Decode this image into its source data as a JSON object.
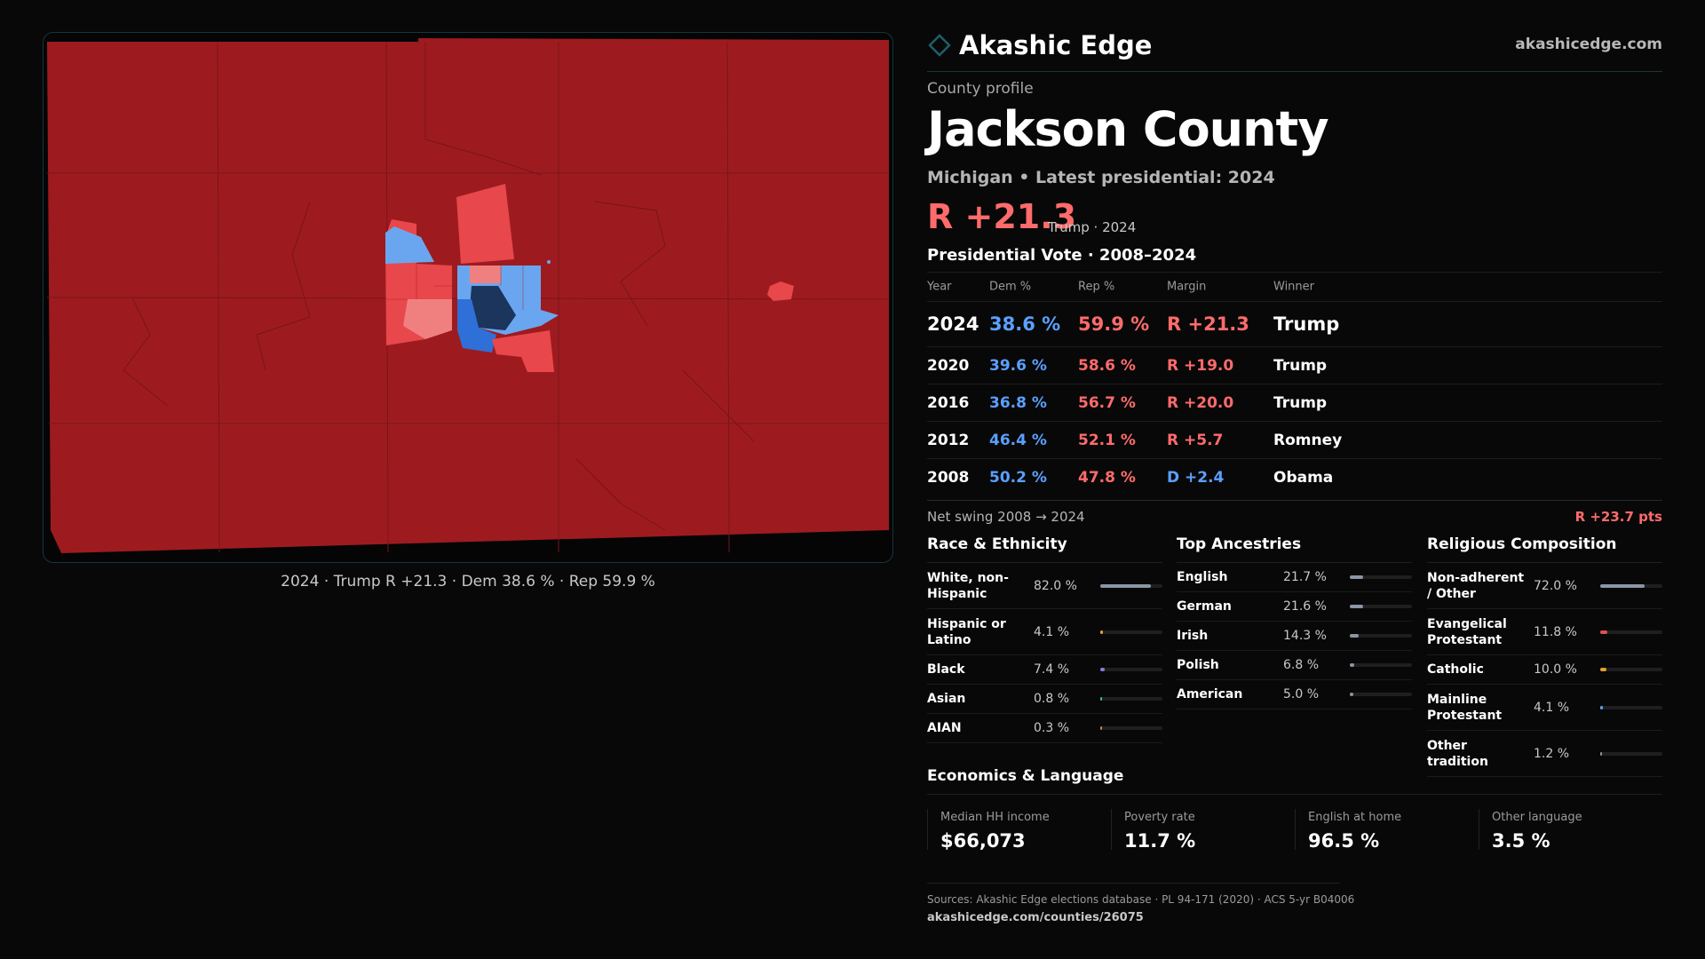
{
  "brand": {
    "name": "Akashic Edge",
    "site": "akashicedge.com",
    "accent": "#1e5f6b"
  },
  "map": {
    "caption": "2024 · Trump R +21.3 · Dem 38.6 % · Rep 59.9 %",
    "colors": {
      "background_rep": "#9d1b1f",
      "rep_medium": "#e8474b",
      "rep_light": "#f08080",
      "dem_light": "#6aa6f0",
      "dem_medium": "#2f6fd8",
      "dem_dark": "#1b355c"
    }
  },
  "profile": {
    "kicker": "County profile",
    "county": "Jackson County",
    "subtitle": "Michigan • Latest presidential: 2024",
    "margin": "R +21.3",
    "margin_note": "Trump · 2024"
  },
  "vote": {
    "title": "Presidential Vote · 2008–2024",
    "headers": {
      "year": "Year",
      "dem": "Dem %",
      "rep": "Rep %",
      "margin": "Margin",
      "winner": "Winner"
    },
    "rows": [
      {
        "year": "2024",
        "dem": "38.6 %",
        "rep": "59.9 %",
        "margin": "R +21.3",
        "party": "R",
        "winner": "Trump"
      },
      {
        "year": "2020",
        "dem": "39.6 %",
        "rep": "58.6 %",
        "margin": "R +19.0",
        "party": "R",
        "winner": "Trump"
      },
      {
        "year": "2016",
        "dem": "36.8 %",
        "rep": "56.7 %",
        "margin": "R +20.0",
        "party": "R",
        "winner": "Trump"
      },
      {
        "year": "2012",
        "dem": "46.4 %",
        "rep": "52.1 %",
        "margin": "R +5.7",
        "party": "R",
        "winner": "Romney"
      },
      {
        "year": "2008",
        "dem": "50.2 %",
        "rep": "47.8 %",
        "margin": "D +2.4",
        "party": "D",
        "winner": "Obama"
      }
    ],
    "swing_label": "Net swing 2008 → 2024",
    "swing_value": "R +23.7 pts"
  },
  "race": {
    "title": "Race & Ethnicity",
    "rows": [
      {
        "label": "White, non-Hispanic",
        "value": "82.0 %",
        "pct": 82.0,
        "color": "#8b95a6"
      },
      {
        "label": "Hispanic or Latino",
        "value": "4.1 %",
        "pct": 4.1,
        "color": "#e0a030"
      },
      {
        "label": "Black",
        "value": "7.4 %",
        "pct": 7.4,
        "color": "#8a7ad8"
      },
      {
        "label": "Asian",
        "value": "0.8 %",
        "pct": 0.8,
        "color": "#3fb6a8"
      },
      {
        "label": "AIAN",
        "value": "0.3 %",
        "pct": 0.3,
        "color": "#d08040"
      }
    ]
  },
  "ancestry": {
    "title": "Top Ancestries",
    "rows": [
      {
        "label": "English",
        "value": "21.7 %",
        "pct": 21.7,
        "color": "#8b95a6"
      },
      {
        "label": "German",
        "value": "21.6 %",
        "pct": 21.6,
        "color": "#8b95a6"
      },
      {
        "label": "Irish",
        "value": "14.3 %",
        "pct": 14.3,
        "color": "#8b95a6"
      },
      {
        "label": "Polish",
        "value": "6.8 %",
        "pct": 6.8,
        "color": "#8b95a6"
      },
      {
        "label": "American",
        "value": "5.0 %",
        "pct": 5.0,
        "color": "#8b95a6"
      }
    ]
  },
  "religion": {
    "title": "Religious Composition",
    "rows": [
      {
        "label": "Non-adherent / Other",
        "value": "72.0 %",
        "pct": 72.0,
        "color": "#8b95a6"
      },
      {
        "label": "Evangelical Protestant",
        "value": "11.8 %",
        "pct": 11.8,
        "color": "#e05050"
      },
      {
        "label": "Catholic",
        "value": "10.0 %",
        "pct": 10.0,
        "color": "#e0a030"
      },
      {
        "label": "Mainline Protestant",
        "value": "4.1 %",
        "pct": 4.1,
        "color": "#5aa0ff"
      },
      {
        "label": "Other tradition",
        "value": "1.2 %",
        "pct": 1.2,
        "color": "#8b95a6"
      }
    ]
  },
  "economics": {
    "title": "Economics & Language",
    "cells": [
      {
        "label": "Median HH income",
        "value": "$66,073"
      },
      {
        "label": "Poverty rate",
        "value": "11.7 %"
      },
      {
        "label": "English at home",
        "value": "96.5 %"
      },
      {
        "label": "Other language",
        "value": "3.5 %"
      }
    ]
  },
  "sources": {
    "line": "Sources: Akashic Edge elections database · PL 94-171 (2020) · ACS 5-yr B04006",
    "url": "akashicedge.com/counties/26075"
  }
}
